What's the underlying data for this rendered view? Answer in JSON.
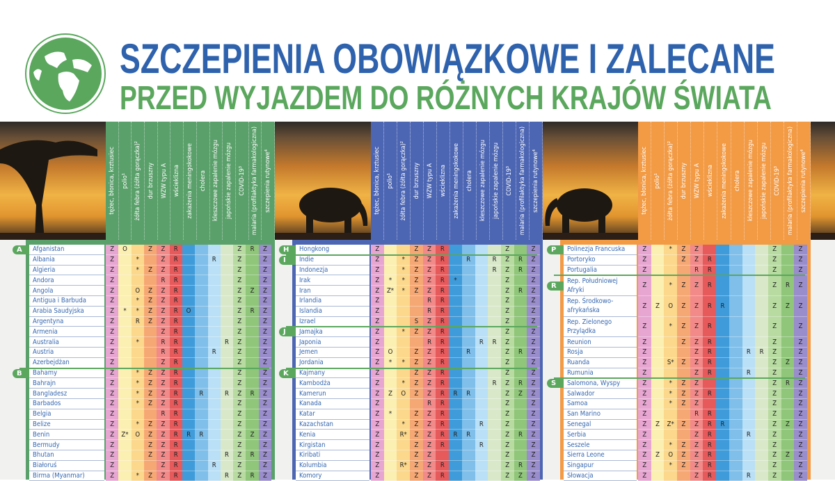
{
  "title": {
    "line1": "SZCZEPIENIA OBOWIĄZKOWE I ZALECANE",
    "line2": "PRZED WYJAZDEM DO RÓŻNYCH KRAJÓW ŚWIATA"
  },
  "logo_icon": "globe-icon",
  "columns": [
    "tężec, błonica, krztusiec",
    "polio¹",
    "żółta febra (żółta gorączka)²",
    "dur brzuszny",
    "WZW typu A",
    "wścieklizna",
    "zakażenia meningokokowe",
    "cholera",
    "kleszczowe zapalenie mózgu",
    "japońskie zapalenie mózgu",
    "COVID-19³",
    "malaria (profilaktyka farmakologiczna)",
    "szczepienia rutynowe⁴"
  ],
  "column_colors": [
    "#e7a6d2",
    "#fcefb2",
    "#fbd88c",
    "#f6a874",
    "#f28a8a",
    "#e75a5c",
    "#3f9bd9",
    "#7fbfea",
    "#b9e0f6",
    "#d9e8c9",
    "#b7dba1",
    "#8fc67a",
    "#9a8dcb"
  ],
  "marker_color": "#5aa75d",
  "panels": [
    {
      "color": "#5aa06a",
      "rows": [
        {
          "letter": "A",
          "name": "Afganistan",
          "cells": "Z,O,,Z,Z,R,,,,,Z,R,Z"
        },
        {
          "name": "Albania",
          "cells": "Z,,*,,Z,R,,,R,,Z,,Z"
        },
        {
          "name": "Algieria",
          "cells": "Z,,*,Z,Z,R,,,,,Z,,Z"
        },
        {
          "name": "Andora",
          "cells": "Z,,,,R,R,,,,,Z,,Z"
        },
        {
          "name": "Angola",
          "cells": "Z,,O,Z,Z,R,,,,,Z,Z,Z"
        },
        {
          "name": "Antigua i Barbuda",
          "cells": "Z,,*,Z,Z,R,,,,,Z,,Z"
        },
        {
          "name": "Arabia Saudyjska",
          "cells": "Z,*,*,Z,Z,R,O,,,,Z,R,Z"
        },
        {
          "name": "Argentyna",
          "cells": "Z,,R,Z,Z,R,,,,,Z,,Z"
        },
        {
          "name": "Armenia",
          "cells": "Z,,,,Z,R,,,,,Z,,Z"
        },
        {
          "name": "Australia",
          "cells": "Z,,*,,R,R,,,,R,Z,,Z"
        },
        {
          "name": "Austria",
          "cells": "Z,,,,R,R,,,R,,Z,,Z"
        },
        {
          "name": "Azerbejdżan",
          "cells": "Z,,,,Z,R,,,,,Z,,Z"
        },
        {
          "letter": "B",
          "name": "Bahamy",
          "cells": "Z,,*,Z,Z,R,,,,,Z,,Z"
        },
        {
          "name": "Bahrajn",
          "cells": "Z,,*,Z,Z,R,,,,,Z,,Z"
        },
        {
          "name": "Bangladesz",
          "cells": "Z,,*,Z,Z,R,,R,,R,Z,R,Z"
        },
        {
          "name": "Barbados",
          "cells": "Z,,*,Z,Z,R,,,,,Z,,Z"
        },
        {
          "name": "Belgia",
          "cells": "Z,,,,R,R,,,,,Z,,Z"
        },
        {
          "name": "Belize",
          "cells": "Z,,*,Z,Z,R,,,,,Z,,Z"
        },
        {
          "name": "Benin",
          "cells": "Z,Z*,O,Z,Z,R,R,R,,,Z,Z,Z"
        },
        {
          "name": "Bermudy",
          "cells": "Z,,,Z,Z,R,,,,,Z,,Z"
        },
        {
          "name": "Bhutan",
          "cells": "Z,,,Z,Z,R,,,,R,Z,R,Z"
        },
        {
          "name": "Białoruś",
          "cells": "Z,,,,Z,R,,,R,,Z,,Z"
        },
        {
          "name": "Birma (Myanmar)",
          "cells": "Z,,*,Z,Z,R,,,,R,Z,R,Z"
        }
      ]
    },
    {
      "color": "#4d66b3",
      "rows": [
        {
          "letter": "H",
          "name": "Hongkong",
          "cells": "Z,,,Z,Z,R,,,,,Z,,Z"
        },
        {
          "letter": "I",
          "name": "Indie",
          "cells": "Z,,*,Z,Z,R,,R,,R,Z,R,Z"
        },
        {
          "name": "Indonezja",
          "cells": "Z,,*,Z,Z,R,,,,R,Z,R,Z"
        },
        {
          "name": "Irak",
          "cells": "Z,*,*,Z,Z,R,*,,,,Z,,Z"
        },
        {
          "name": "Iran",
          "cells": "Z,Z*,*,Z,Z,R,,,,,Z,R,Z"
        },
        {
          "name": "Irlandia",
          "cells": "Z,,,,R,R,,,,,Z,,Z"
        },
        {
          "name": "Islandia",
          "cells": "Z,,,,R,R,,,,,Z,,Z"
        },
        {
          "name": "Izrael",
          "cells": "Z,,,S,Z,R,,,,,Z,,Z"
        },
        {
          "letter": "J",
          "name": "Jamajka",
          "cells": "Z,,*,Z,Z,R,,,,,Z,,Z"
        },
        {
          "name": "Japonia",
          "cells": "Z,,,,R,R,,,R,R,Z,,Z"
        },
        {
          "name": "Jemen",
          "cells": "Z,O,,Z,Z,R,,R,,,Z,R,Z"
        },
        {
          "name": "Jordania",
          "cells": "Z,*,*,Z,Z,R,,,,,Z,,Z"
        },
        {
          "letter": "K",
          "name": "Kajmany",
          "cells": "Z,,,Z,Z,R,,,,,Z,,Z"
        },
        {
          "name": "Kambodża",
          "cells": "Z,,*,Z,Z,R,,,,R,Z,R,Z"
        },
        {
          "name": "Kamerun",
          "cells": "Z,Z,O,Z,Z,R,R,R,,,Z,Z,Z"
        },
        {
          "name": "Kanada",
          "cells": "Z,,,,R,R,,,,,Z,,Z"
        },
        {
          "name": "Katar",
          "cells": "Z,*,,Z,Z,R,,,,,Z,,Z"
        },
        {
          "name": "Kazachstan",
          "cells": "Z,,*,Z,Z,R,,,R,,Z,,Z"
        },
        {
          "name": "Kenia",
          "cells": "Z,,R*,Z,Z,R,R,R,,,Z,R,Z"
        },
        {
          "name": "Kirgistan",
          "cells": "Z,,,Z,Z,R,,,R,,Z,,Z"
        },
        {
          "name": "Kiribati",
          "cells": "Z,,,Z,Z,,,,,,Z,,Z"
        },
        {
          "name": "Kolumbia",
          "cells": "Z,,R*,Z,Z,R,,,,,Z,R,Z"
        },
        {
          "name": "Komory",
          "cells": "Z,,,Z,Z,R,,,,,Z,Z,Z"
        }
      ]
    },
    {
      "color": "#f29a44",
      "rows": [
        {
          "letter": "P",
          "name": "Polinezja Francuska",
          "cells": "Z,,*,Z,Z,,,,,,Z,,Z"
        },
        {
          "name": "Portoryko",
          "cells": "Z,,,Z,Z,R,,,,,Z,,Z"
        },
        {
          "name": "Portugalia",
          "cells": "Z,,,,R,R,,,,,Z,,Z"
        },
        {
          "letter": "R",
          "name": "Rep. Południowej\nAfryki",
          "cells": "Z,,*,Z,Z,R,,,,,Z,R,Z"
        },
        {
          "name": "Rep. Środkowo-\nafrykańska",
          "cells": "Z,Z,O,Z,Z,R,R,,,,Z,Z,Z"
        },
        {
          "name": "Rep. Zielonego\nPrzylądka",
          "cells": "Z,,*,Z,Z,R,,,,,Z,,Z"
        },
        {
          "name": "Reunion",
          "cells": "Z,,,Z,Z,R,,,,,Z,,Z"
        },
        {
          "name": "Rosja",
          "cells": "Z,,,,Z,R,,,R,R,Z,,Z"
        },
        {
          "name": "Ruanda",
          "cells": "Z,,S*,Z,Z,R,,,,,Z,Z,Z"
        },
        {
          "name": "Rumunia",
          "cells": "Z,,,,Z,R,,,R,,Z,,Z"
        },
        {
          "letter": "S",
          "name": "Salomona, Wyspy",
          "cells": "Z,,*,Z,Z,,,,,,Z,R,Z"
        },
        {
          "name": "Salwador",
          "cells": "Z,,*,Z,Z,R,,,,,Z,,Z"
        },
        {
          "name": "Samoa",
          "cells": "Z,,*,Z,Z,,,,,,Z,,Z"
        },
        {
          "name": "San Marino",
          "cells": "Z,,,,R,R,,,,,Z,,Z"
        },
        {
          "name": "Senegal",
          "cells": "Z,Z,Z*,Z,Z,R,R,,,,Z,Z,Z"
        },
        {
          "name": "Serbia",
          "cells": "Z,,,,Z,R,,,R,,Z,,Z"
        },
        {
          "name": "Seszele",
          "cells": "Z,,*,Z,Z,R,,,,,Z,,Z"
        },
        {
          "name": "Sierra Leone",
          "cells": "Z,Z,O,Z,Z,R,,,,,Z,Z,Z"
        },
        {
          "name": "Singapur",
          "cells": "Z,,*,Z,Z,R,,,,,Z,,Z"
        },
        {
          "name": "Słowacja",
          "cells": "Z,,,,Z,R,,,R,,Z,,Z"
        }
      ]
    }
  ]
}
